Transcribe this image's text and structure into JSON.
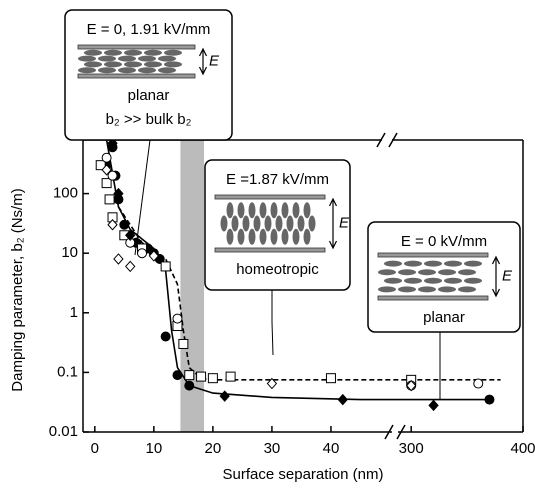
{
  "chart_data": {
    "type": "scatter",
    "xlabel": "Surface separation (nm)",
    "ylabel": "Damping parameter, b₂ (Ns/m)",
    "xlim": [
      -2,
      400
    ],
    "x_break": [
      50,
      290
    ],
    "xticks": [
      0,
      10,
      20,
      30,
      40,
      300,
      400
    ],
    "ylim": [
      0.01,
      1000
    ],
    "log_y": true,
    "yticks": [
      0.01,
      0.1,
      1,
      10,
      100
    ],
    "shaded_band": [
      14.5,
      18.5
    ],
    "series": [
      {
        "marker": "circle-filled",
        "x": [
          2,
          3,
          3.5,
          4,
          5,
          7,
          9,
          10,
          11,
          12,
          14,
          16,
          370
        ],
        "values": [
          300,
          600,
          200,
          80,
          30,
          15,
          12,
          10,
          8,
          0.4,
          0.09,
          0.06,
          0.035
        ]
      },
      {
        "marker": "square-open",
        "x": [
          1,
          2,
          2.5,
          3,
          5,
          8,
          12,
          14,
          15,
          16,
          18,
          20,
          23,
          40,
          300
        ],
        "values": [
          300,
          150,
          80,
          40,
          20,
          12,
          6,
          0.6,
          0.3,
          0.09,
          0.085,
          0.08,
          0.085,
          0.08,
          0.075
        ]
      },
      {
        "marker": "circle-open",
        "x": [
          2,
          3,
          6,
          8,
          14,
          300,
          360
        ],
        "values": [
          400,
          200,
          15,
          10,
          0.8,
          0.06,
          0.065
        ]
      },
      {
        "marker": "diamond-filled",
        "x": [
          3,
          4,
          6,
          22,
          42,
          320
        ],
        "values": [
          700,
          100,
          20,
          0.04,
          0.035,
          0.028
        ]
      },
      {
        "marker": "diamond-open",
        "x": [
          2,
          3,
          4,
          6,
          10,
          30,
          300
        ],
        "values": [
          250,
          30,
          8,
          6,
          9,
          0.065,
          0.06
        ]
      },
      {
        "marker": "line-solid",
        "x": [
          2,
          4,
          6,
          10,
          12,
          13,
          14,
          16,
          20,
          30,
          45,
          370
        ],
        "values": [
          800,
          60,
          25,
          12,
          5,
          0.5,
          0.12,
          0.06,
          0.045,
          0.038,
          0.035,
          0.035
        ]
      },
      {
        "marker": "line-dashed",
        "x": [
          4,
          8,
          12,
          14,
          15,
          16,
          18,
          20,
          45,
          380
        ],
        "values": [
          60,
          15,
          8,
          3,
          0.5,
          0.12,
          0.08,
          0.075,
          0.075,
          0.075
        ]
      }
    ],
    "callouts": [
      {
        "title": "E = 0, 1.91 kV/mm",
        "arrow_label": "E",
        "caption": "planar",
        "note": "b₂ >> bulk b₂"
      },
      {
        "title": "E =1.87 kV/mm",
        "arrow_label": "E",
        "caption": "homeotropic"
      },
      {
        "title": "E = 0 kV/mm",
        "arrow_label": "E",
        "caption": "planar"
      }
    ]
  }
}
